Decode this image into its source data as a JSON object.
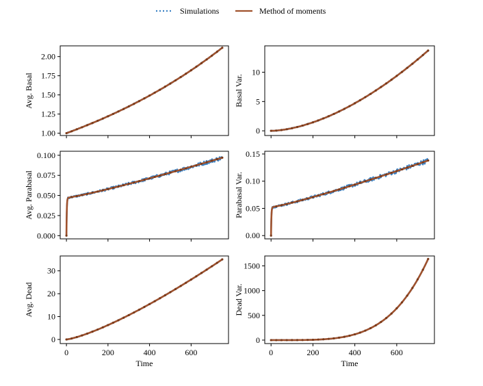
{
  "chart_data": {
    "type": "line",
    "legend": {
      "location": "top-center",
      "entries": [
        {
          "label": "Simulations",
          "style": "dotted",
          "color": "#3b82c4"
        },
        {
          "label": "Method of moments",
          "style": "solid",
          "color": "#a0522d"
        }
      ]
    },
    "colors": {
      "simulations": "#3b82c4",
      "moments": "#a0522d"
    },
    "x_shared": {
      "xlim": [
        -30,
        780
      ],
      "xticks": [
        0,
        200,
        400,
        600
      ],
      "xlabel": "Time",
      "t_max": 750
    },
    "panels": [
      {
        "id": "avg-basal",
        "ylabel": "Avg. Basal",
        "ylim": [
          0.97,
          2.14
        ],
        "yticks": [
          1.0,
          1.25,
          1.5,
          1.75,
          2.0
        ],
        "ytick_labels": [
          "1.00",
          "1.25",
          "1.50",
          "1.75",
          "2.00"
        ],
        "show_xticklabels": false,
        "curve": {
          "kind": "exp",
          "a": 1.0,
          "b": 0.000999
        },
        "noise": 0.004
      },
      {
        "id": "basal-var",
        "ylabel": "Basal Var.",
        "ylim": [
          -0.8,
          14.5
        ],
        "yticks": [
          0,
          5,
          10
        ],
        "ytick_labels": [
          "0",
          "5",
          "10"
        ],
        "show_xticklabels": false,
        "curve": {
          "kind": "power",
          "a": 13.7,
          "p": 1.7
        },
        "noise": 0.05
      },
      {
        "id": "avg-parabasal",
        "ylabel": "Avg. Parabasal",
        "ylim": [
          -0.004,
          0.105
        ],
        "yticks": [
          0.0,
          0.025,
          0.05,
          0.075,
          0.1
        ],
        "ytick_labels": [
          "0.000",
          "0.025",
          "0.050",
          "0.075",
          "0.100"
        ],
        "show_xticklabels": false,
        "curve": {
          "kind": "jump",
          "j": 0.047,
          "k": 0.6,
          "end": 0.097
        },
        "noise": 0.0018
      },
      {
        "id": "parabasal-var",
        "ylabel": "Parabasal Var.",
        "ylim": [
          -0.006,
          0.155
        ],
        "yticks": [
          0.0,
          0.05,
          0.1,
          0.15
        ],
        "ytick_labels": [
          "0.00",
          "0.05",
          "0.10",
          "0.15"
        ],
        "show_xticklabels": false,
        "curve": {
          "kind": "jump",
          "j": 0.052,
          "k": 0.6,
          "end": 0.138
        },
        "noise": 0.003
      },
      {
        "id": "avg-dead",
        "ylabel": "Avg. Dead",
        "ylim": [
          -1.8,
          36.5
        ],
        "yticks": [
          0,
          10,
          20,
          30
        ],
        "ytick_labels": [
          "0",
          "10",
          "20",
          "30"
        ],
        "show_xticklabels": true,
        "curve": {
          "kind": "power",
          "a": 35.0,
          "p": 1.3
        },
        "noise": 0.08
      },
      {
        "id": "dead-var",
        "ylabel": "Dead Var.",
        "ylim": [
          -70,
          1700
        ],
        "yticks": [
          0,
          500,
          1000,
          1500
        ],
        "ytick_labels": [
          "0",
          "500",
          "1000",
          "1500"
        ],
        "show_xticklabels": true,
        "curve": {
          "kind": "power",
          "a": 1640,
          "p": 4.2
        },
        "noise": 3
      }
    ]
  }
}
